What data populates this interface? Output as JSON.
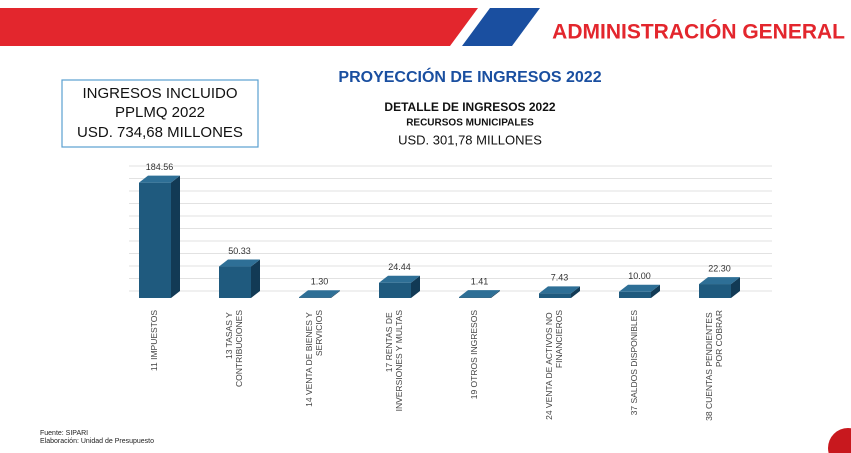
{
  "header": "ADMINISTRACIÓN GENERAL",
  "box": {
    "line1": "INGRESOS INCLUIDO",
    "line2": "PPLMQ 2022",
    "line3": "USD. 734,68 MILLONES"
  },
  "footer": {
    "source": "Fuente: SIPARI",
    "credit": "Elaboración: Unidad de Presupuesto"
  },
  "chart_data": {
    "type": "bar3d",
    "title": "PROYECCIÓN DE INGRESOS 2022",
    "subtitle": "DETALLE DE INGRESOS 2022",
    "subtitle2": "RECURSOS MUNICIPALES",
    "subtitle3": "USD. 301,78 MILLONES",
    "categories": [
      "11 IMPUESTOS",
      "13 TASAS Y CONTRIBUCIONES",
      "14 VENTA DE BIENES Y SERVICIOS",
      "17 RENTAS DE INVERSIONES Y MULTAS",
      "19 OTROS INGRESOS",
      "24 VENTA DE ACTIVOS NO FINANCIEROS",
      "37 SALDOS DISPONIBLES",
      "38 CUENTAS PENDIENTES POR COBRAR"
    ],
    "values": [
      184.56,
      50.33,
      1.3,
      24.44,
      1.41,
      7.43,
      10,
      22.3
    ],
    "value_labels": [
      "184.56",
      "50.33",
      "1.30",
      "24.44",
      "1.41",
      "7.43",
      "10.00",
      "22.30"
    ],
    "color": "#1f5a7e",
    "ylim": [
      0,
      200
    ],
    "yticks": [
      0,
      20,
      40,
      60,
      80,
      100,
      120,
      140,
      160,
      180,
      200
    ],
    "grid": true
  }
}
